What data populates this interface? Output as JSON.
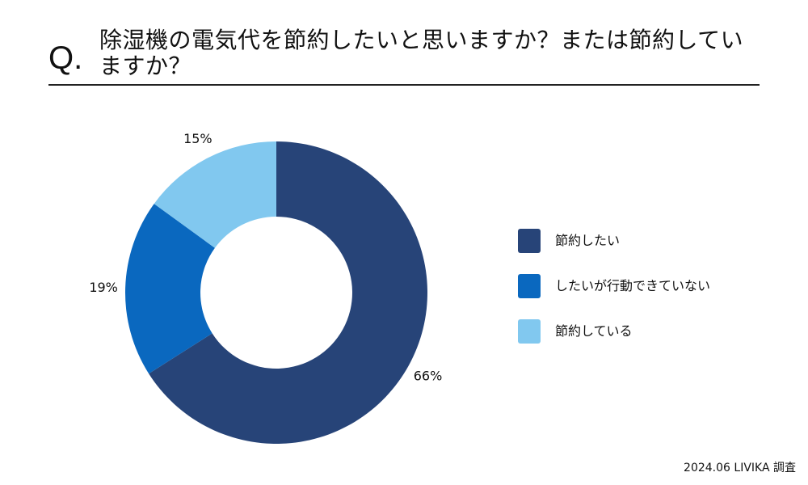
{
  "header": {
    "q_mark": "Q.",
    "question": "除湿機の電気代を節約したいと思いますか？または節約していますか？"
  },
  "chart_data": {
    "type": "pie",
    "donut": true,
    "categories": [
      "節約したい",
      "したいが行動できていない",
      "節約している"
    ],
    "values": [
      66,
      19,
      15
    ],
    "value_labels": [
      "66%",
      "19%",
      "15%"
    ],
    "colors": [
      "#274478",
      "#0a68bf",
      "#81c8ef"
    ],
    "legend_position": "right"
  },
  "footer": {
    "source": "2024.06 LIVIKA 調査"
  }
}
